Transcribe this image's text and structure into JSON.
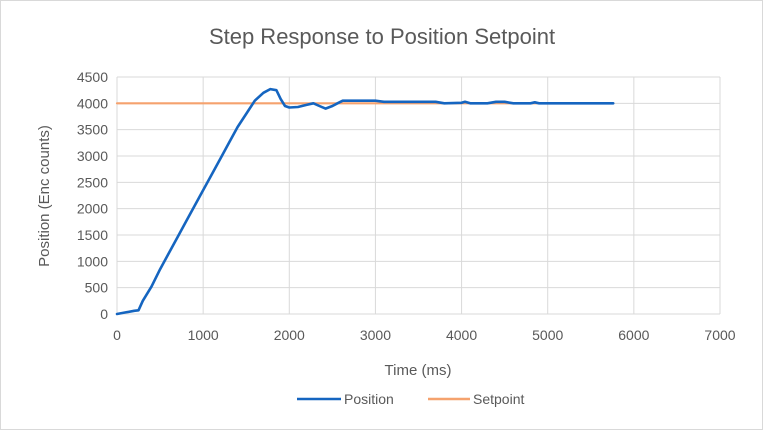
{
  "chart_data": {
    "type": "line",
    "title": "Step Response to Position Setpoint",
    "xlabel": "Time (ms)",
    "ylabel": "Position (Enc counts)",
    "xlim": [
      0,
      7000
    ],
    "ylim": [
      0,
      4500
    ],
    "x_ticks": [
      "0",
      "1000",
      "2000",
      "3000",
      "4000",
      "5000",
      "6000",
      "7000"
    ],
    "y_ticks": [
      "0",
      "500",
      "1000",
      "1500",
      "2000",
      "2500",
      "3000",
      "3500",
      "4000",
      "4500"
    ],
    "grid": true,
    "legend_position": "bottom",
    "series": [
      {
        "name": "Position",
        "color": "#1565c0",
        "x": [
          0,
          100,
          200,
          250,
          300,
          400,
          500,
          600,
          700,
          800,
          900,
          1000,
          1100,
          1200,
          1300,
          1400,
          1500,
          1600,
          1700,
          1780,
          1850,
          1900,
          1950,
          2000,
          2100,
          2200,
          2280,
          2350,
          2420,
          2500,
          2560,
          2620,
          2700,
          2800,
          3000,
          3100,
          3200,
          3500,
          3700,
          3800,
          4000,
          4040,
          4100,
          4200,
          4300,
          4400,
          4500,
          4600,
          4800,
          4850,
          4900,
          5000,
          5500,
          5760
        ],
        "y": [
          0,
          30,
          60,
          70,
          250,
          520,
          850,
          1150,
          1450,
          1750,
          2050,
          2350,
          2650,
          2950,
          3250,
          3550,
          3800,
          4050,
          4200,
          4270,
          4250,
          4080,
          3950,
          3920,
          3930,
          3970,
          4000,
          3950,
          3900,
          3950,
          4000,
          4050,
          4050,
          4050,
          4050,
          4030,
          4030,
          4030,
          4030,
          4000,
          4010,
          4030,
          4000,
          4000,
          4000,
          4030,
          4030,
          4000,
          4000,
          4020,
          4000,
          4000,
          4000,
          4000
        ]
      },
      {
        "name": "Setpoint",
        "color": "#f5a26e",
        "x": [
          0,
          5760
        ],
        "y": [
          4000,
          4000
        ]
      }
    ]
  }
}
